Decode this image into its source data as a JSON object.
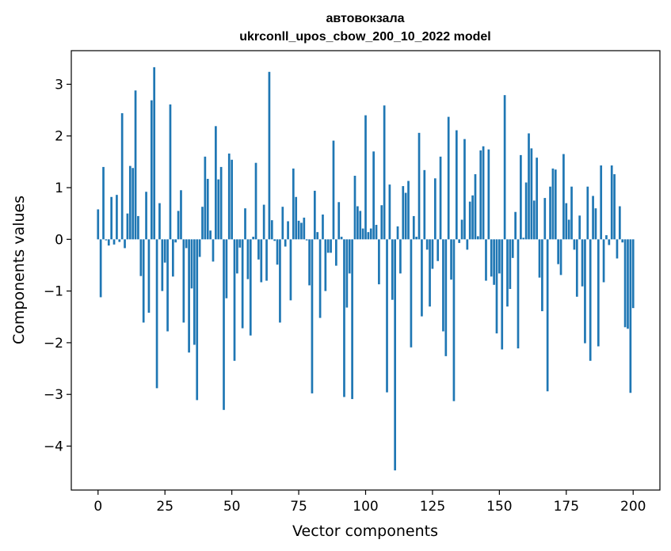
{
  "chart_data": {
    "type": "bar",
    "title_line1": "автовокзала",
    "title_line2": "ukrconll_upos_cbow_200_10_2022 model",
    "xlabel": "Vector components",
    "ylabel": "Components values",
    "xlim": [
      -10,
      210
    ],
    "ylim": [
      -4.85,
      3.65
    ],
    "xticks": [
      0,
      25,
      50,
      75,
      100,
      125,
      150,
      175,
      200
    ],
    "yticks": [
      -4,
      -3,
      -2,
      -1,
      0,
      1,
      2,
      3
    ],
    "bar_color": "#1f77b4",
    "x_start": 0,
    "values": [
      0.58,
      -1.12,
      1.4,
      -0.02,
      -0.12,
      0.82,
      -0.1,
      0.86,
      -0.05,
      2.44,
      -0.17,
      0.5,
      1.42,
      1.38,
      2.88,
      0.45,
      -0.71,
      -1.61,
      0.92,
      -1.42,
      2.69,
      3.33,
      -2.88,
      0.7,
      -1.0,
      -0.45,
      -1.78,
      2.61,
      -0.72,
      -0.06,
      0.55,
      0.95,
      -1.61,
      -0.17,
      -2.19,
      -0.95,
      -2.04,
      -3.11,
      -0.34,
      0.63,
      1.6,
      1.17,
      0.17,
      -0.43,
      2.19,
      1.16,
      1.4,
      -3.3,
      -1.14,
      1.66,
      1.54,
      -2.35,
      -0.66,
      -0.16,
      -1.72,
      0.6,
      -0.77,
      -1.86,
      0.05,
      1.48,
      -0.39,
      -0.83,
      0.67,
      -0.8,
      3.24,
      0.37,
      -0.03,
      -0.49,
      -1.61,
      0.63,
      -0.14,
      0.35,
      -1.18,
      1.37,
      0.82,
      0.36,
      0.32,
      0.42,
      -0.02,
      -0.89,
      -2.98,
      0.94,
      0.14,
      -1.52,
      0.48,
      -1.0,
      -0.26,
      -0.26,
      1.91,
      -0.51,
      0.72,
      0.05,
      -3.05,
      -1.32,
      -0.66,
      -3.09,
      1.23,
      0.64,
      0.55,
      0.21,
      2.4,
      0.14,
      0.21,
      1.7,
      0.28,
      -0.87,
      0.66,
      2.59,
      -2.96,
      1.06,
      -1.17,
      -4.47,
      0.25,
      -0.66,
      1.03,
      0.9,
      1.13,
      -2.09,
      0.45,
      0.05,
      2.06,
      -1.49,
      1.34,
      -0.2,
      -1.3,
      -0.57,
      1.18,
      -0.42,
      1.6,
      -1.78,
      -2.26,
      2.37,
      -0.78,
      -3.13,
      2.11,
      -0.07,
      0.38,
      1.94,
      -0.2,
      0.73,
      0.85,
      1.26,
      0.06,
      1.72,
      1.8,
      -0.8,
      1.74,
      -0.72,
      -0.88,
      -1.82,
      -0.66,
      -2.13,
      2.79,
      -1.3,
      -0.96,
      -0.36,
      0.53,
      -2.11,
      1.63,
      0.03,
      1.1,
      2.05,
      1.76,
      0.75,
      1.58,
      -0.74,
      -1.39,
      0.8,
      -2.94,
      1.02,
      1.37,
      1.35,
      -0.48,
      -0.69,
      1.65,
      0.7,
      0.38,
      1.02,
      -0.2,
      -1.11,
      0.46,
      -0.91,
      -2.01,
      1.02,
      -2.35,
      0.84,
      0.6,
      -2.07,
      1.43,
      -0.83,
      0.08,
      -0.11,
      1.43,
      1.26,
      -0.37,
      0.64,
      -0.06,
      -1.7,
      -1.73,
      -2.97,
      -1.33
    ]
  }
}
